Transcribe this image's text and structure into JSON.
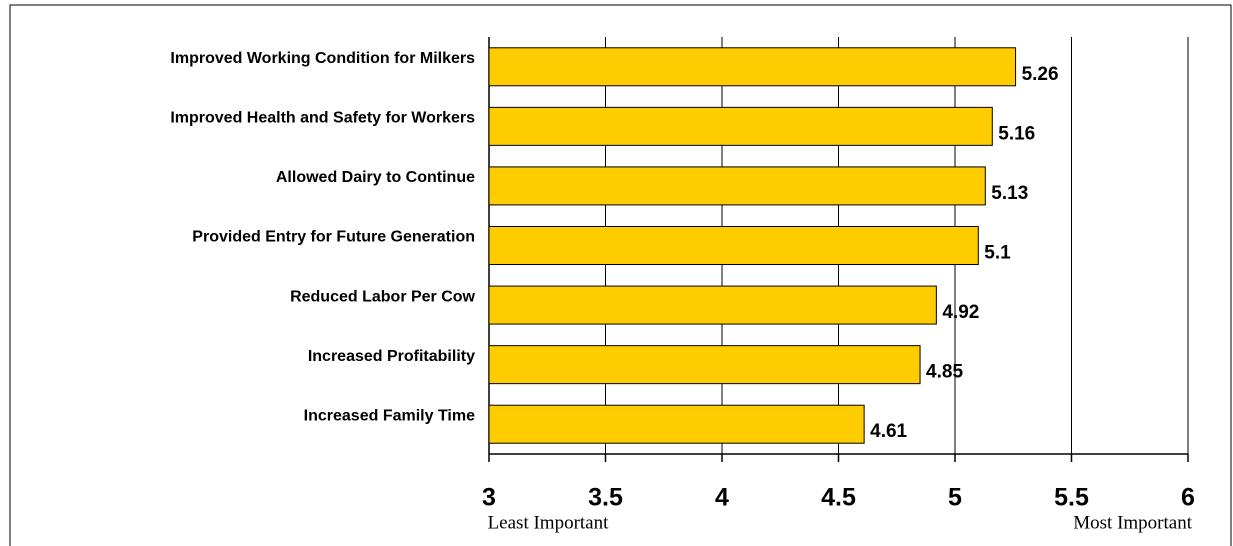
{
  "chart_data": {
    "type": "bar",
    "orientation": "horizontal",
    "categories": [
      "Improved Working Condition for Milkers",
      "Improved Health and Safety for Workers",
      "Allowed Dairy to Continue",
      "Provided Entry for Future Generation",
      "Reduced Labor Per Cow",
      "Increased Profitability",
      "Increased Family Time"
    ],
    "values": [
      5.26,
      5.16,
      5.13,
      5.1,
      4.92,
      4.85,
      4.61
    ],
    "color": "#ffcc00",
    "xlim": [
      3,
      6
    ],
    "xticks": [
      3,
      3.5,
      4,
      4.5,
      5,
      5.5,
      6
    ],
    "grid": true,
    "annotations": [
      "Least Important",
      "Most Important"
    ]
  }
}
